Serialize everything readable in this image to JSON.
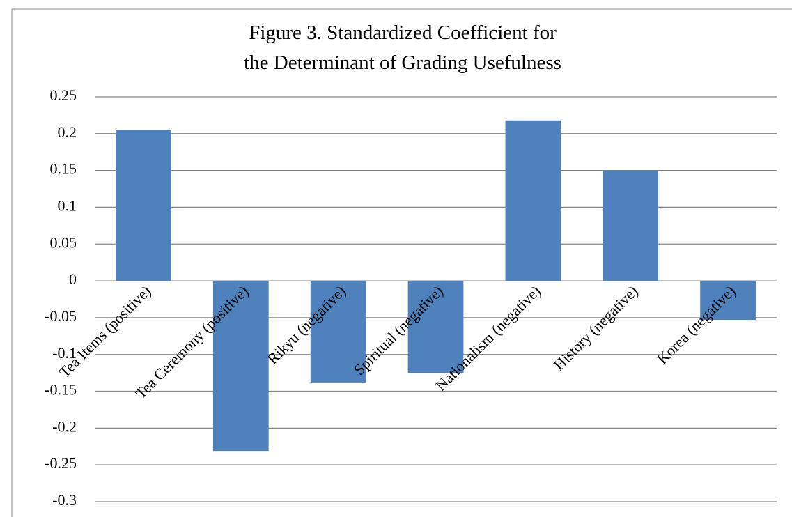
{
  "chart_data": {
    "type": "bar",
    "title": [
      "Figure 3. Standardized Coefficient for",
      "the Determinant of Grading Usefulness"
    ],
    "categories": [
      "Tea Items (positive)",
      "Tea Ceremony (positive)",
      "Rikyu (negative)",
      "Spiritual (negative)",
      "Nationalism (negative)",
      "History (negative)",
      "Korea (negative)"
    ],
    "values": [
      0.205,
      -0.231,
      -0.138,
      -0.125,
      0.218,
      0.15,
      -0.053
    ],
    "color": "#4f81bd",
    "ylim": [
      -0.3,
      0.25
    ],
    "yticks": [
      -0.3,
      -0.25,
      -0.2,
      -0.15,
      -0.1,
      -0.05,
      0,
      0.05,
      0.1,
      0.15,
      0.2,
      0.25
    ],
    "grid": true
  }
}
